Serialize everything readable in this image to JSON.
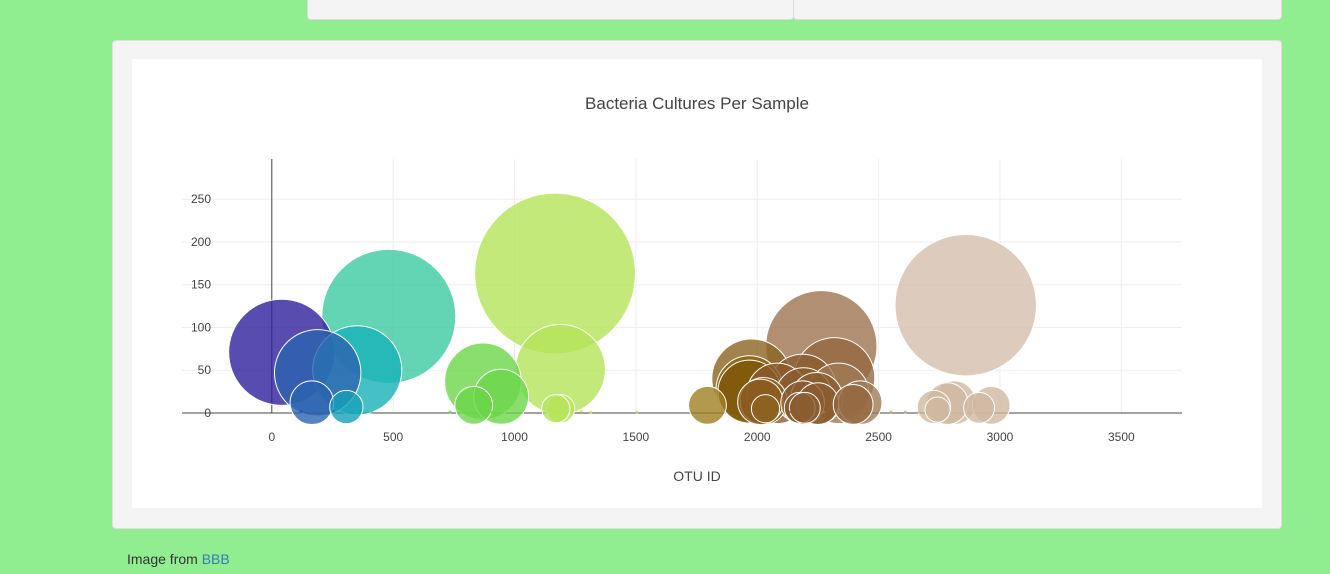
{
  "footer": {
    "prefix": "Image from",
    "link_text": "BBB"
  },
  "chart_data": {
    "type": "scatter",
    "title": "Bacteria Cultures Per Sample",
    "xlabel": "OTU ID",
    "ylabel": "",
    "xlim": [
      -370,
      3750
    ],
    "ylim": [
      0,
      297
    ],
    "xticks": [
      0,
      500,
      1000,
      1500,
      2000,
      2500,
      3000,
      3500
    ],
    "yticks": [
      0,
      50,
      100,
      150,
      200,
      250
    ],
    "grid": true,
    "marker": "bubble sized by value",
    "points": [
      {
        "x": 1167,
        "y": 163,
        "color": "#b5e35a"
      },
      {
        "x": 2859,
        "y": 126,
        "color": "#d4bfad"
      },
      {
        "x": 482,
        "y": 113,
        "color": "#3ccaa1"
      },
      {
        "x": 2264,
        "y": 78,
        "color": "#9c7350"
      },
      {
        "x": 41,
        "y": 71,
        "color": "#2e1f9e"
      },
      {
        "x": 1189,
        "y": 51,
        "color": "#b5e35a"
      },
      {
        "x": 352,
        "y": 50,
        "color": "#17b2b8"
      },
      {
        "x": 189,
        "y": 47,
        "color": "#2c63b0"
      },
      {
        "x": 1977,
        "y": 40,
        "color": "#8b6420"
      },
      {
        "x": 2318,
        "y": 41,
        "color": "#946840"
      },
      {
        "x": 870,
        "y": 37,
        "color": "#6bd64a"
      },
      {
        "x": 1968,
        "y": 28,
        "color": "#8b6410"
      },
      {
        "x": 2186,
        "y": 29,
        "color": "#8a5c30"
      },
      {
        "x": 1968,
        "y": 25,
        "color": "#7d5808"
      },
      {
        "x": 2082,
        "y": 23,
        "color": "#8b5a30"
      },
      {
        "x": 2335,
        "y": 23,
        "color": "#a07a55"
      },
      {
        "x": 945,
        "y": 19,
        "color": "#6bd64a"
      },
      {
        "x": 2191,
        "y": 20,
        "color": "#8a5c30"
      },
      {
        "x": 2245,
        "y": 17,
        "color": "#8a5c30"
      },
      {
        "x": 2424,
        "y": 12,
        "color": "#a07a55"
      },
      {
        "x": 2811,
        "y": 12,
        "color": "#d0b8a0"
      },
      {
        "x": 2783,
        "y": 11,
        "color": "#d0b8a0"
      },
      {
        "x": 2013,
        "y": 13,
        "color": "#8b5a20"
      },
      {
        "x": 165,
        "y": 12,
        "color": "#2c63b0"
      },
      {
        "x": 2026,
        "y": 14,
        "color": "#8b6420"
      },
      {
        "x": 2964,
        "y": 9,
        "color": "#d0b8a0"
      },
      {
        "x": 1795,
        "y": 9,
        "color": "#a08020"
      },
      {
        "x": 2395,
        "y": 10,
        "color": "#946840"
      },
      {
        "x": 2250,
        "y": 11,
        "color": "#8a5c30"
      },
      {
        "x": 2187,
        "y": 12,
        "color": "#8a5c30"
      },
      {
        "x": 832,
        "y": 9,
        "color": "#6bd64a"
      },
      {
        "x": 2728,
        "y": 7,
        "color": "#d0b8a0"
      },
      {
        "x": 2914,
        "y": 6,
        "color": "#d0b8a0"
      },
      {
        "x": 307,
        "y": 7,
        "color": "#17a0b8"
      },
      {
        "x": 2034,
        "y": 5,
        "color": "#8b6420"
      },
      {
        "x": 1190,
        "y": 5,
        "color": "#b5e35a"
      },
      {
        "x": 1170,
        "y": 5,
        "color": "#b5e35a"
      },
      {
        "x": 2175,
        "y": 6,
        "color": "#8a5c30"
      },
      {
        "x": 2196,
        "y": 6,
        "color": "#8a5c30"
      },
      {
        "x": 2743,
        "y": 4,
        "color": "#d0b8a0"
      }
    ],
    "small_points_near_zero": [
      {
        "x": 121,
        "y": 2,
        "color": "#2e4fa0"
      },
      {
        "x": 254,
        "y": 2,
        "color": "#1f77b4"
      },
      {
        "x": 345,
        "y": 1,
        "color": "#17b2b8"
      },
      {
        "x": 411,
        "y": 1,
        "color": "#3ccaa1"
      },
      {
        "x": 734,
        "y": 1,
        "color": "#6bd64a"
      },
      {
        "x": 905,
        "y": 1,
        "color": "#6bd64a"
      },
      {
        "x": 1275,
        "y": 2,
        "color": "#d4e35a"
      },
      {
        "x": 1314,
        "y": 1,
        "color": "#d4e35a"
      },
      {
        "x": 1505,
        "y": 1,
        "color": "#d4d45a"
      },
      {
        "x": 1960,
        "y": 1,
        "color": "#8b6420"
      },
      {
        "x": 2133,
        "y": 1,
        "color": "#8a5c30"
      },
      {
        "x": 2273,
        "y": 1,
        "color": "#a07a55"
      },
      {
        "x": 2337,
        "y": 1,
        "color": "#a07a55"
      },
      {
        "x": 2551,
        "y": 1,
        "color": "#c0a890"
      },
      {
        "x": 2610,
        "y": 1,
        "color": "#c0a890"
      },
      {
        "x": 2667,
        "y": 1,
        "color": "#d0b8a0"
      }
    ]
  }
}
